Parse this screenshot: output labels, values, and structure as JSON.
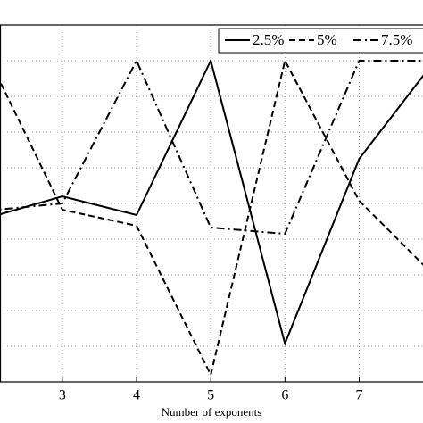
{
  "chart_data": {
    "type": "line",
    "x": [
      2,
      3,
      4,
      5,
      6,
      7,
      8
    ],
    "xlabel": "Number of exponents",
    "series": [
      {
        "name": "2.5%",
        "color": "#000000",
        "dash": "solid",
        "values": [
          4.6,
          5.2,
          4.675,
          9.0,
          1.075,
          6.25,
          8.95
        ]
      },
      {
        "name": "5%",
        "color": "#000000",
        "dash": "dashed",
        "values": [
          9.1,
          4.825,
          4.375,
          0.2,
          9.0,
          5.075,
          3.0
        ]
      },
      {
        "name": "7.5%",
        "color": "#000000",
        "dash": "dashdot",
        "values": [
          4.8,
          5.0,
          9.0,
          4.325,
          4.15,
          9.0,
          9.0
        ]
      }
    ],
    "xlim": [
      2.16,
      7.86
    ],
    "xticks": [
      3,
      4,
      5,
      6,
      7
    ],
    "ylim": [
      0,
      10
    ],
    "yticks": [
      1,
      2,
      3,
      4,
      5,
      6,
      7,
      8,
      9,
      10
    ],
    "grid": true,
    "legend": "upper right"
  }
}
